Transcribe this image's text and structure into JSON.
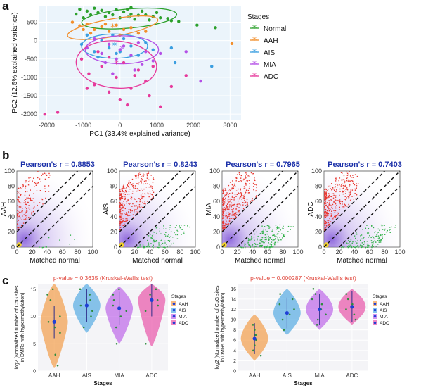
{
  "panels": {
    "a": "a",
    "b": "b",
    "c": "c"
  },
  "colors": {
    "Normal": "#2ca02c",
    "AAH": "#f28e2b",
    "AIS": "#3a9ee0",
    "MIA": "#b44fe6",
    "ADC": "#e6399b"
  },
  "chart_data": [
    {
      "id": "a",
      "type": "scatter",
      "xlabel": "PC1 (33.4% explained variance)",
      "ylabel": "PC2 (12.5% explained variance)",
      "xlim": [
        -2200,
        3300
      ],
      "ylim": [
        -2150,
        950
      ],
      "xticks": [
        "-2000",
        "-1000",
        "0",
        "1000",
        "2000",
        "3000"
      ],
      "yticks": [
        "500",
        "0",
        "-500",
        "-1000",
        "-1500",
        "-2000"
      ],
      "xtick_values": [
        -2000,
        -1000,
        0,
        1000,
        2000,
        3000
      ],
      "ytick_values": [
        500,
        0,
        -500,
        -1000,
        -1500,
        -2000
      ],
      "legend_title": "Stages",
      "legend_position": "right",
      "series": [
        {
          "name": "Normal",
          "center": [
            250,
            600
          ],
          "ellipse": {
            "rx": 1300,
            "ry": 260,
            "angle": -5
          },
          "points": [
            [
              -1100,
              850
            ],
            [
              -900,
              800
            ],
            [
              -700,
              880
            ],
            [
              -500,
              820
            ],
            [
              -300,
              760
            ],
            [
              -100,
              840
            ],
            [
              100,
              780
            ],
            [
              300,
              720
            ],
            [
              500,
              690
            ],
            [
              700,
              700
            ],
            [
              900,
              650
            ],
            [
              1100,
              620
            ],
            [
              1300,
              600
            ],
            [
              1600,
              520
            ],
            [
              -800,
              700
            ],
            [
              -400,
              650
            ],
            [
              0,
              620
            ],
            [
              400,
              580
            ],
            [
              800,
              560
            ],
            [
              -1200,
              720
            ],
            [
              -600,
              760
            ],
            [
              1000,
              760
            ],
            [
              200,
              850
            ],
            [
              -200,
              700
            ],
            [
              600,
              800
            ],
            [
              1400,
              540
            ],
            [
              2100,
              420
            ],
            [
              2600,
              350
            ],
            [
              -1000,
              620
            ],
            [
              300,
              900
            ]
          ]
        },
        {
          "name": "AAH",
          "center": [
            -200,
            350
          ],
          "ellipse": {
            "rx": 1250,
            "ry": 240,
            "angle": -10
          },
          "points": [
            [
              -1300,
              500
            ],
            [
              -1100,
              400
            ],
            [
              -900,
              450
            ],
            [
              -700,
              300
            ],
            [
              -500,
              380
            ],
            [
              -300,
              250
            ],
            [
              -100,
              420
            ],
            [
              100,
              300
            ],
            [
              300,
              350
            ],
            [
              500,
              200
            ],
            [
              -800,
              200
            ],
            [
              -400,
              450
            ],
            [
              0,
              150
            ],
            [
              -1000,
              300
            ],
            [
              3050,
              -80
            ],
            [
              700,
              250
            ]
          ]
        },
        {
          "name": "AIS",
          "center": [
            -150,
            -150
          ],
          "ellipse": {
            "rx": 900,
            "ry": 330,
            "angle": 0
          },
          "points": [
            [
              -1050,
              -100
            ],
            [
              -900,
              150
            ],
            [
              -700,
              -300
            ],
            [
              -500,
              0
            ],
            [
              -300,
              -200
            ],
            [
              -100,
              -350
            ],
            [
              100,
              50
            ],
            [
              300,
              -150
            ],
            [
              500,
              -400
            ],
            [
              700,
              -50
            ],
            [
              900,
              -250
            ],
            [
              -600,
              -450
            ],
            [
              0,
              -300
            ],
            [
              1500,
              -600
            ],
            [
              2500,
              -700
            ],
            [
              1400,
              -200
            ],
            [
              -200,
              150
            ]
          ]
        },
        {
          "name": "MIA",
          "center": [
            50,
            -250
          ],
          "ellipse": {
            "rx": 1000,
            "ry": 380,
            "angle": 0
          },
          "points": [
            [
              -900,
              -200
            ],
            [
              -700,
              50
            ],
            [
              -500,
              -350
            ],
            [
              -300,
              -100
            ],
            [
              -100,
              -500
            ],
            [
              100,
              -150
            ],
            [
              300,
              -400
            ],
            [
              500,
              -50
            ],
            [
              700,
              -300
            ],
            [
              900,
              -550
            ],
            [
              -400,
              -600
            ],
            [
              0,
              -250
            ],
            [
              600,
              -650
            ],
            [
              1800,
              -300
            ],
            [
              2200,
              -1100
            ],
            [
              -200,
              -900
            ],
            [
              400,
              -800
            ],
            [
              1100,
              -350
            ]
          ]
        },
        {
          "name": "ADC",
          "center": [
            -100,
            -650
          ],
          "ellipse": {
            "rx": 1100,
            "ry": 640,
            "angle": 5
          },
          "points": [
            [
              -1050,
              -500
            ],
            [
              -850,
              -900
            ],
            [
              -700,
              -1200
            ],
            [
              -500,
              -700
            ],
            [
              -300,
              -1400
            ],
            [
              -100,
              -1000
            ],
            [
              100,
              -600
            ],
            [
              300,
              -1300
            ],
            [
              500,
              -800
            ],
            [
              700,
              -1100
            ],
            [
              900,
              -700
            ],
            [
              -600,
              -300
            ],
            [
              0,
              -1600
            ],
            [
              -2050,
              -2000
            ],
            [
              -1700,
              -1950
            ],
            [
              1100,
              -1800
            ],
            [
              200,
              -1750
            ],
            [
              -900,
              -1300
            ],
            [
              800,
              -1500
            ],
            [
              -300,
              -450
            ],
            [
              400,
              -950
            ],
            [
              1400,
              -1250
            ],
            [
              1800,
              -950
            ]
          ]
        }
      ]
    },
    {
      "id": "b",
      "type": "scatter",
      "subplots": [
        {
          "title": "Pearson's r = 0.8853",
          "ylabel": "AAH",
          "xlabel": "Matched normal",
          "red_density": 0.5,
          "green_density": 0.05
        },
        {
          "title": "Pearson's r = 0.8243",
          "ylabel": "AIS",
          "xlabel": "Matched normal",
          "red_density": 0.9,
          "green_density": 0.5
        },
        {
          "title": "Pearson's r = 0.7965",
          "ylabel": "MIA",
          "xlabel": "Matched normal",
          "red_density": 1.0,
          "green_density": 0.9
        },
        {
          "title": "Pearson's r = 0.7403",
          "ylabel": "ADC",
          "xlabel": "Matched normal",
          "red_density": 1.0,
          "green_density": 0.7
        }
      ],
      "xlim": [
        0,
        100
      ],
      "ylim": [
        0,
        100
      ],
      "xticks": [
        "0",
        "20",
        "40",
        "60",
        "80",
        "100"
      ],
      "yticks": [
        "0",
        "20",
        "40",
        "60",
        "80",
        "100"
      ],
      "tick_values": [
        0,
        20,
        40,
        60,
        80,
        100
      ],
      "diagonal_offsets": [
        -20,
        0,
        20
      ]
    },
    {
      "id": "c",
      "type": "violin",
      "plots": [
        {
          "title": "p-value = 0.3635 (Kruskal-Wallis test)",
          "ylabel_lines": [
            "log2 (Normalized number of CpG sites",
            "in DMRs with hypermethylation)"
          ],
          "xlabel": "Stages",
          "categories": [
            "AAH",
            "AIS",
            "MIA",
            "ADC"
          ],
          "ylim": [
            0,
            16
          ],
          "yticks": [
            "0",
            "5",
            "10",
            "15"
          ],
          "ytick_values": [
            0,
            5,
            10,
            15
          ],
          "medians": [
            9,
            12,
            11.5,
            13
          ],
          "ranges": [
            [
              0.5,
              16
            ],
            [
              7,
              16
            ],
            [
              5,
              15.5
            ],
            [
              4.5,
              16
            ]
          ],
          "points": [
            [
              1,
              3,
              7,
              8,
              9,
              10,
              13,
              14,
              15
            ],
            [
              8,
              10,
              11,
              12,
              13,
              14,
              15
            ],
            [
              5,
              8,
              10,
              11,
              12,
              13,
              14,
              15
            ],
            [
              5,
              11,
              12,
              13,
              14,
              15
            ]
          ]
        },
        {
          "title": "p-value = 0.000287 (Kruskal-Wallis test)",
          "ylabel_lines": [
            "log2 (Normalized number of CpG sites",
            "in DMRs with hypermethylation)"
          ],
          "xlabel": "Stages",
          "categories": [
            "AAH",
            "AIS",
            "MIA",
            "ADC"
          ],
          "ylim": [
            0,
            17
          ],
          "yticks": [
            "0",
            "2",
            "4",
            "6",
            "8",
            "10",
            "12",
            "14",
            "16"
          ],
          "ytick_values": [
            0,
            2,
            4,
            6,
            8,
            10,
            12,
            14,
            16
          ],
          "medians": [
            6.3,
            11.3,
            12,
            12.5
          ],
          "ranges": [
            [
              2,
              11
            ],
            [
              7,
              16
            ],
            [
              8,
              16
            ],
            [
              9,
              16
            ]
          ],
          "points": [
            [
              3,
              4,
              5,
              6,
              7,
              8,
              9
            ],
            [
              8,
              10,
              11,
              12,
              13,
              14,
              15
            ],
            [
              9,
              10,
              11,
              12,
              13,
              14,
              15,
              16
            ],
            [
              10,
              11,
              12,
              13,
              14,
              15
            ]
          ]
        }
      ],
      "legend_title": "Stages",
      "legend_entries": [
        "AAH",
        "AIS",
        "MIA",
        "ADC"
      ],
      "legend_position": "right"
    }
  ]
}
